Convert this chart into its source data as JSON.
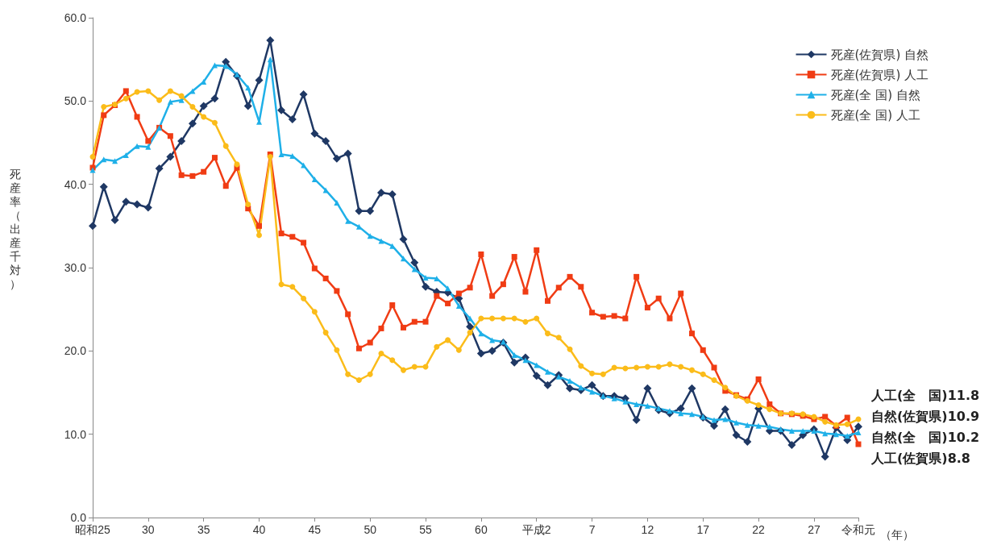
{
  "chart_data": {
    "type": "line",
    "xlabel": "（年）",
    "ylabel": "死産率（出産千対）",
    "categories": [
      "昭和25",
      null,
      null,
      null,
      null,
      "30",
      null,
      null,
      null,
      null,
      "35",
      null,
      null,
      null,
      null,
      "40",
      null,
      null,
      null,
      null,
      "45",
      null,
      null,
      null,
      null,
      "50",
      null,
      null,
      null,
      null,
      "55",
      null,
      null,
      null,
      null,
      "60",
      null,
      null,
      null,
      null,
      "平成2",
      null,
      null,
      null,
      null,
      "7",
      null,
      null,
      null,
      null,
      "12",
      null,
      null,
      null,
      null,
      "17",
      null,
      null,
      null,
      null,
      "22",
      null,
      null,
      null,
      null,
      "27",
      null,
      null,
      null,
      "令和元"
    ],
    "series": [
      {
        "name": "死産(佐賀県) 自然",
        "color": "#1f3864",
        "marker": "diamond",
        "values": [
          35.0,
          39.7,
          35.7,
          37.9,
          37.6,
          37.2,
          41.9,
          43.3,
          45.2,
          47.3,
          49.4,
          50.3,
          54.7,
          53.0,
          49.4,
          52.5,
          57.3,
          48.9,
          47.8,
          50.8,
          46.1,
          45.2,
          43.1,
          43.7,
          36.8,
          36.8,
          39.0,
          38.8,
          33.4,
          30.6,
          27.7,
          27.1,
          27.0,
          26.3,
          22.9,
          19.7,
          20.0,
          21.0,
          18.6,
          19.2,
          17.0,
          15.9,
          17.1,
          15.5,
          15.3,
          15.9,
          14.6,
          14.6,
          14.3,
          11.7,
          15.5,
          12.9,
          12.5,
          13.1,
          15.5,
          12.0,
          11.0,
          13.0,
          9.9,
          9.1,
          13.1,
          10.4,
          10.4,
          8.7,
          9.9,
          10.6,
          7.3,
          10.8,
          9.3,
          10.9
        ]
      },
      {
        "name": "死産(佐賀県) 人工",
        "color": "#f03c14",
        "marker": "square",
        "values": [
          42.0,
          48.3,
          49.5,
          51.2,
          48.1,
          45.2,
          46.8,
          45.8,
          41.1,
          41.0,
          41.5,
          43.2,
          39.8,
          42.0,
          37.1,
          35.0,
          43.6,
          34.1,
          33.7,
          33.0,
          29.9,
          28.7,
          27.2,
          24.4,
          20.3,
          21.0,
          22.7,
          25.5,
          22.8,
          23.5,
          23.5,
          26.6,
          25.7,
          26.9,
          27.6,
          31.6,
          26.6,
          28.0,
          31.3,
          27.1,
          32.1,
          26.0,
          27.6,
          28.9,
          27.7,
          24.6,
          24.1,
          24.2,
          23.9,
          28.9,
          25.2,
          26.3,
          23.9,
          26.9,
          22.1,
          20.1,
          18.0,
          15.2,
          14.7,
          14.2,
          16.6,
          13.6,
          12.5,
          12.4,
          12.2,
          11.8,
          12.1,
          11.0,
          12.0,
          8.8
        ]
      },
      {
        "name": "死産(全 国) 自然",
        "color": "#1fb0e8",
        "marker": "triangle",
        "values": [
          41.7,
          43.0,
          42.8,
          43.5,
          44.6,
          44.5,
          46.8,
          49.9,
          50.1,
          51.2,
          52.3,
          54.3,
          54.2,
          53.2,
          51.6,
          47.5,
          55.0,
          43.6,
          43.4,
          42.3,
          40.6,
          39.3,
          37.8,
          35.6,
          34.9,
          33.8,
          33.2,
          32.6,
          31.1,
          29.8,
          28.8,
          28.7,
          27.5,
          25.4,
          23.9,
          22.1,
          21.3,
          21.1,
          19.5,
          18.9,
          18.3,
          17.5,
          16.9,
          16.4,
          15.6,
          15.1,
          14.6,
          14.3,
          13.9,
          13.6,
          13.4,
          13.1,
          12.8,
          12.5,
          12.4,
          12.1,
          11.7,
          11.8,
          11.4,
          11.1,
          11.0,
          10.9,
          10.6,
          10.4,
          10.4,
          10.4,
          10.1,
          10.0,
          9.8,
          10.2
        ]
      },
      {
        "name": "死産(全 国) 人工",
        "color": "#fbbc1a",
        "marker": "circle",
        "values": [
          43.3,
          49.3,
          49.6,
          50.3,
          51.1,
          51.2,
          50.1,
          51.2,
          50.6,
          49.3,
          48.1,
          47.4,
          44.6,
          42.4,
          37.6,
          33.9,
          43.3,
          28.0,
          27.7,
          26.3,
          24.7,
          22.2,
          20.1,
          17.2,
          16.5,
          17.2,
          19.7,
          18.9,
          17.7,
          18.1,
          18.1,
          20.5,
          21.3,
          20.1,
          22.2,
          23.9,
          23.9,
          23.9,
          23.9,
          23.5,
          23.9,
          22.1,
          21.6,
          20.2,
          18.2,
          17.3,
          17.2,
          18.0,
          17.9,
          18.0,
          18.1,
          18.1,
          18.4,
          18.1,
          17.7,
          17.2,
          16.5,
          15.6,
          14.6,
          14.0,
          13.5,
          13.0,
          12.5,
          12.5,
          12.4,
          12.1,
          11.5,
          11.1,
          11.2,
          11.8
        ]
      }
    ],
    "ylim": [
      0,
      60
    ],
    "yticks": [
      {
        "value": 0,
        "label": "0.0"
      },
      {
        "value": 10,
        "label": "10.0"
      },
      {
        "value": 20,
        "label": "20.0"
      },
      {
        "value": 30,
        "label": "30.0"
      },
      {
        "value": 40,
        "label": "40.0"
      },
      {
        "value": 50,
        "label": "50.0"
      },
      {
        "value": 60,
        "label": "60.0"
      }
    ],
    "legend": "top right",
    "annotations": [
      "人工(全　国)11.8",
      "自然(佐賀県)10.9",
      "自然(全　国)10.2",
      "人工(佐賀県)8.8"
    ]
  }
}
